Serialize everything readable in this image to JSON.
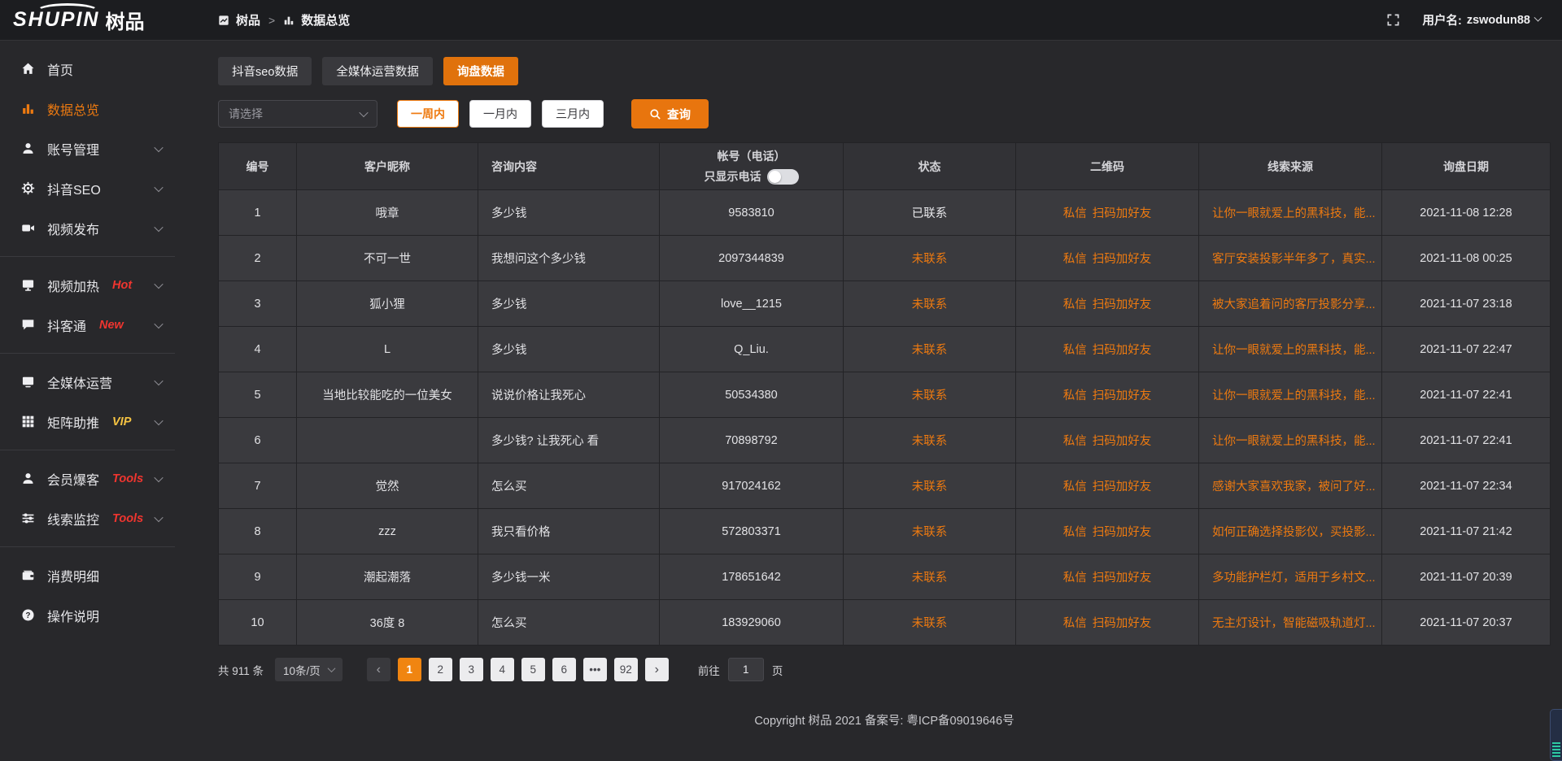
{
  "colors": {
    "accent": "#ee7a10",
    "badge_red": "#f0352f",
    "badge_yellow": "#f5c342"
  },
  "logo": {
    "brand_en": "SHUPIN",
    "brand_cn": "树品"
  },
  "header": {
    "breadcrumb_root": "树品",
    "breadcrumb_current": "数据总览",
    "username_label": "用户名:",
    "username": "zswodun88"
  },
  "sidebar": {
    "items": [
      {
        "label": "首页",
        "icon": "home",
        "active": false,
        "chevron": false
      },
      {
        "label": "数据总览",
        "icon": "chart",
        "active": true,
        "chevron": false
      },
      {
        "label": "账号管理",
        "icon": "user",
        "active": false,
        "chevron": true
      },
      {
        "label": "抖音SEO",
        "icon": "gear",
        "active": false,
        "chevron": true
      },
      {
        "label": "视频发布",
        "icon": "video",
        "active": false,
        "chevron": true
      },
      {
        "type": "divider"
      },
      {
        "label": "视频加热",
        "icon": "monitor",
        "badge": "Hot",
        "badge_color": "#f0352f",
        "chevron": true
      },
      {
        "label": "抖客通",
        "icon": "chat",
        "badge": "New",
        "badge_color": "#f0352f",
        "chevron": true
      },
      {
        "type": "divider"
      },
      {
        "label": "全媒体运营",
        "icon": "screen",
        "active": false,
        "chevron": true
      },
      {
        "label": "矩阵助推",
        "icon": "grid",
        "badge": "VIP",
        "badge_color": "#f5c342",
        "chevron": true
      },
      {
        "type": "divider"
      },
      {
        "label": "会员爆客",
        "icon": "person",
        "badge": "Tools",
        "badge_color": "#f0352f",
        "chevron": true
      },
      {
        "label": "线索监控",
        "icon": "sliders",
        "badge": "Tools",
        "badge_color": "#f0352f",
        "chevron": true
      },
      {
        "type": "divider"
      },
      {
        "label": "消费明细",
        "icon": "wallet",
        "active": false,
        "chevron": false
      },
      {
        "label": "操作说明",
        "icon": "help",
        "active": false,
        "chevron": false
      }
    ]
  },
  "tabs": [
    {
      "label": "抖音seo数据",
      "active": false
    },
    {
      "label": "全媒体运营数据",
      "active": false
    },
    {
      "label": "询盘数据",
      "active": true
    }
  ],
  "filters": {
    "select_placeholder": "请选择",
    "ranges": [
      {
        "label": "一周内",
        "selected": true
      },
      {
        "label": "一月内",
        "selected": false
      },
      {
        "label": "三月内",
        "selected": false
      }
    ],
    "search_label": "查询"
  },
  "table": {
    "headers": {
      "id": "编号",
      "nickname": "客户昵称",
      "content": "咨询内容",
      "account": "帐号（电话）",
      "phone_only_label": "只显示电话",
      "status": "状态",
      "qr": "二维码",
      "source": "线索来源",
      "date": "询盘日期"
    },
    "qr_actions": [
      "私信",
      "扫码加好友"
    ],
    "rows": [
      {
        "id": "1",
        "nickname": "哦章",
        "content": "多少钱",
        "account": "9583810",
        "status": "已联系",
        "status_type": "contacted",
        "source": "让你一眼就爱上的黑科技，能...",
        "date": "2021-11-08 12:28"
      },
      {
        "id": "2",
        "nickname": "不可一世",
        "content": "我想问这个多少钱",
        "account": "2097344839",
        "status": "未联系",
        "status_type": "pending",
        "source": "客厅安装投影半年多了，真实...",
        "date": "2021-11-08 00:25"
      },
      {
        "id": "3",
        "nickname": "狐小狸",
        "content": "多少钱",
        "account": "love__1215",
        "status": "未联系",
        "status_type": "pending",
        "source": "被大家追着问的客厅投影分享...",
        "date": "2021-11-07 23:18"
      },
      {
        "id": "4",
        "nickname": "L",
        "content": "多少钱",
        "account": "Q_Liu.",
        "status": "未联系",
        "status_type": "pending",
        "source": "让你一眼就爱上的黑科技，能...",
        "date": "2021-11-07 22:47"
      },
      {
        "id": "5",
        "nickname": "当地比较能吃的一位美女",
        "content": "说说价格让我死心",
        "account": "50534380",
        "status": "未联系",
        "status_type": "pending",
        "source": "让你一眼就爱上的黑科技，能...",
        "date": "2021-11-07 22:41"
      },
      {
        "id": "6",
        "nickname": "",
        "content": "多少钱? 让我死心 看",
        "account": "70898792",
        "status": "未联系",
        "status_type": "pending",
        "source": "让你一眼就爱上的黑科技，能...",
        "date": "2021-11-07 22:41"
      },
      {
        "id": "7",
        "nickname": "觉然",
        "content": "怎么买",
        "account": "917024162",
        "status": "未联系",
        "status_type": "pending",
        "source": "感谢大家喜欢我家，被问了好...",
        "date": "2021-11-07 22:34"
      },
      {
        "id": "8",
        "nickname": "zzz",
        "content": "我只看价格",
        "account": "572803371",
        "status": "未联系",
        "status_type": "pending",
        "source": "如何正确选择投影仪，买投影...",
        "date": "2021-11-07 21:42"
      },
      {
        "id": "9",
        "nickname": "潮起潮落",
        "content": "多少钱一米",
        "account": "178651642",
        "status": "未联系",
        "status_type": "pending",
        "source": "多功能护栏灯，适用于乡村文...",
        "date": "2021-11-07 20:39"
      },
      {
        "id": "10",
        "nickname": "36度 8",
        "content": "怎么买",
        "account": "183929060",
        "status": "未联系",
        "status_type": "pending",
        "source": "无主灯设计，智能磁吸轨道灯...",
        "date": "2021-11-07 20:37"
      }
    ]
  },
  "pagination": {
    "total": "共 911 条",
    "page_size": "10条/页",
    "pages": [
      "1",
      "2",
      "3",
      "4",
      "5",
      "6",
      "•••",
      "92"
    ],
    "active_page": "1",
    "goto_label": "前往",
    "goto_value": "1",
    "goto_unit": "页"
  },
  "footer": {
    "copyright": "Copyright 树品 2021 备案号: 粤ICP备09019646号"
  }
}
